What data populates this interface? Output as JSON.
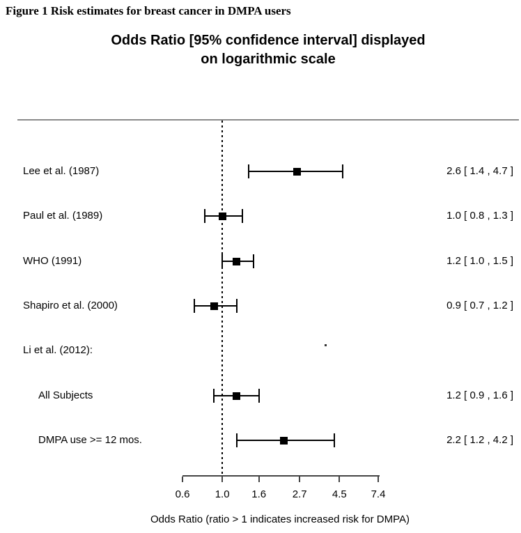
{
  "figure_title": "Figure 1 Risk estimates for breast cancer in DMPA users",
  "chart_data": {
    "type": "forest",
    "scale": "logarithmic",
    "title_lines": [
      "Odds Ratio [95% confidence interval] displayed",
      "on logarithmic scale"
    ],
    "xlabel": "Odds Ratio (ratio > 1 indicates increased risk for DMPA)",
    "x_axis": {
      "min": 0.6,
      "max": 7.4,
      "ticks": [
        0.6,
        1.0,
        1.6,
        2.7,
        4.5,
        7.4
      ],
      "tick_labels": [
        "0.6",
        "1.0",
        "1.6",
        "2.7",
        "4.5",
        "7.4"
      ]
    },
    "reference_line": 1.0,
    "rows": [
      {
        "label": "Lee et al. (1987)",
        "indent": false,
        "header": false,
        "or": 2.6,
        "ci_low": 1.4,
        "ci_high": 4.7,
        "display": "2.6 [ 1.4 , 4.7 ]"
      },
      {
        "label": "Paul et al. (1989)",
        "indent": false,
        "header": false,
        "or": 1.0,
        "ci_low": 0.8,
        "ci_high": 1.3,
        "display": "1.0 [ 0.8 , 1.3 ]"
      },
      {
        "label": "WHO (1991)",
        "indent": false,
        "header": false,
        "or": 1.2,
        "ci_low": 1.0,
        "ci_high": 1.5,
        "display": "1.2 [ 1.0 , 1.5 ]"
      },
      {
        "label": "Shapiro et al. (2000)",
        "indent": false,
        "header": false,
        "or": 0.9,
        "ci_low": 0.7,
        "ci_high": 1.2,
        "display": "0.9 [ 0.7 , 1.2 ]"
      },
      {
        "label": "Li et al. (2012):",
        "indent": false,
        "header": true,
        "or": null,
        "ci_low": null,
        "ci_high": null,
        "display": ""
      },
      {
        "label": "All Subjects",
        "indent": true,
        "header": false,
        "or": 1.2,
        "ci_low": 0.9,
        "ci_high": 1.6,
        "display": "1.2 [ 0.9 , 1.6 ]"
      },
      {
        "label": "DMPA use >= 12 mos.",
        "indent": true,
        "header": false,
        "or": 2.2,
        "ci_low": 1.2,
        "ci_high": 4.2,
        "display": "2.2 [ 1.2 , 4.2 ]"
      }
    ]
  },
  "colors": {
    "text": "#000000",
    "top_rule": "#8a8a8a",
    "marker": "#000000",
    "axis": "#444444"
  }
}
